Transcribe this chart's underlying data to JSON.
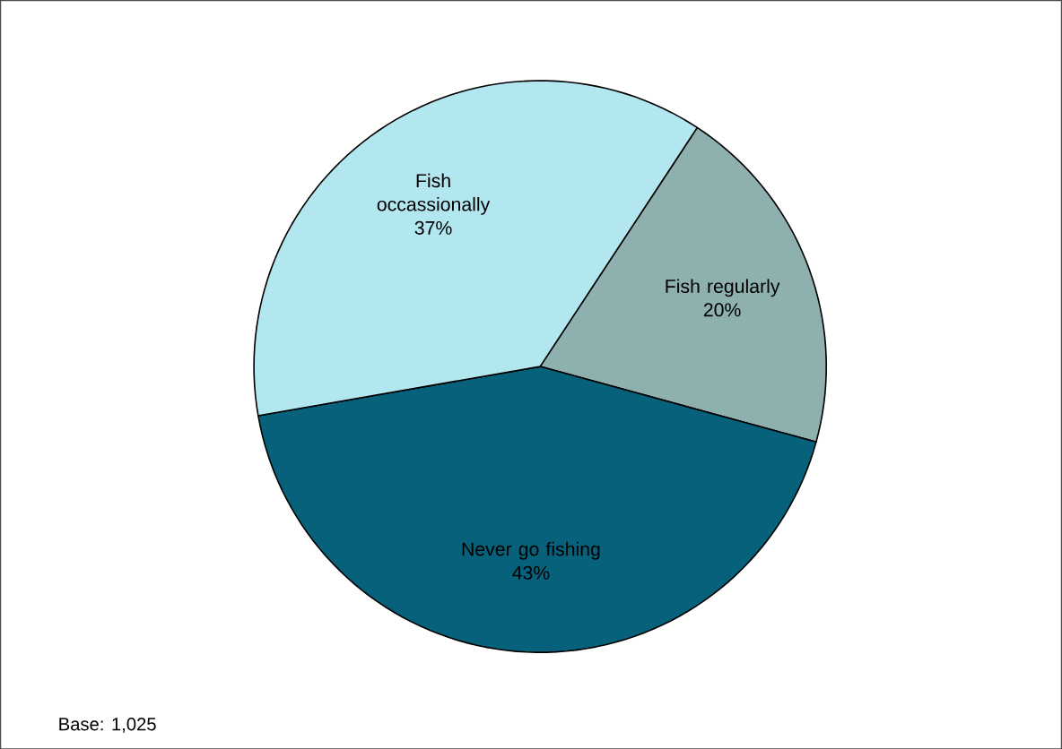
{
  "chart_data": {
    "type": "pie",
    "categories": [
      "Fish regularly",
      "Never go fishing",
      "Fish occassionally"
    ],
    "values": [
      20,
      43,
      37
    ],
    "colors": [
      "#8eb0af",
      "#07617a",
      "#b3e7ef"
    ],
    "data_labels": true,
    "value_labels": [
      "20%",
      "43%",
      "37%"
    ],
    "annotations": [
      "Base: 1,025"
    ]
  }
}
